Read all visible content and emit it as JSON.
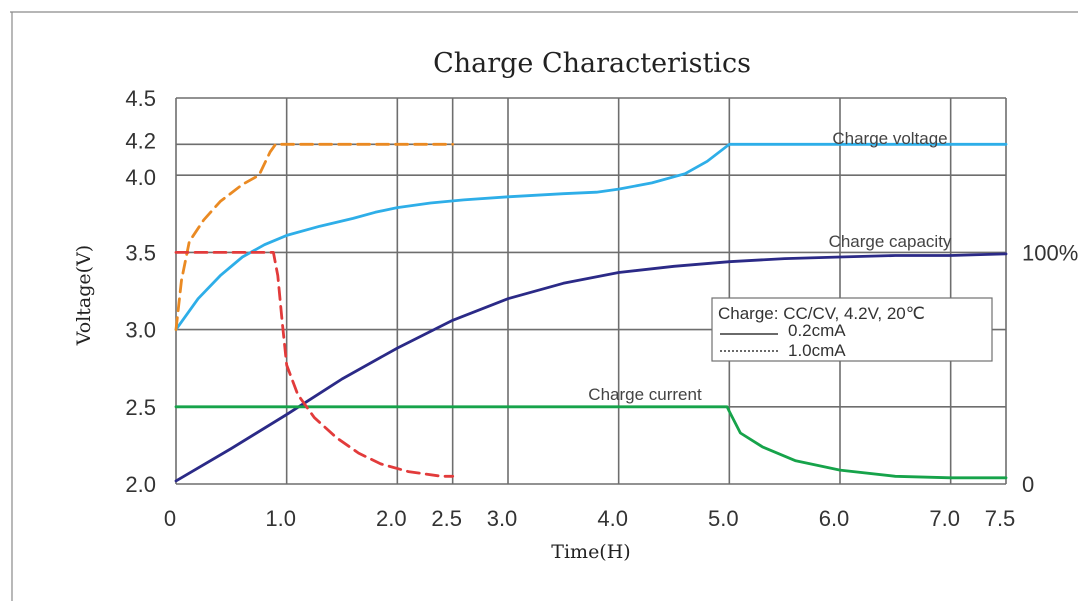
{
  "chart_data": {
    "type": "line",
    "title": "Charge Characteristics",
    "xlabel": "Time(H)",
    "ylabel": "Voltage(V)",
    "xlim": [
      0,
      7.5
    ],
    "ylim": [
      2.0,
      4.5
    ],
    "x_ticks": [
      {
        "v": 0,
        "label": "0"
      },
      {
        "v": 1.0,
        "label": "1.0"
      },
      {
        "v": 2.0,
        "label": "2.0"
      },
      {
        "v": 2.5,
        "label": "2.5"
      },
      {
        "v": 3.0,
        "label": "3.0"
      },
      {
        "v": 4.0,
        "label": "4.0"
      },
      {
        "v": 5.0,
        "label": "5.0"
      },
      {
        "v": 6.0,
        "label": "6.0"
      },
      {
        "v": 7.0,
        "label": "7.0"
      },
      {
        "v": 7.5,
        "label": "7.5"
      }
    ],
    "x_grid": [
      0,
      1.0,
      2.0,
      2.5,
      3.0,
      4.0,
      5.0,
      6.0,
      7.0,
      7.5
    ],
    "y_ticks": [
      {
        "v": 2.0,
        "label": "2.0"
      },
      {
        "v": 2.5,
        "label": "2.5"
      },
      {
        "v": 3.0,
        "label": "3.0"
      },
      {
        "v": 3.5,
        "label": "3.5"
      },
      {
        "v": 4.0,
        "label": "4.0"
      },
      {
        "v": 4.2,
        "label": "4.2"
      },
      {
        "v": 4.5,
        "label": "4.5"
      }
    ],
    "y_grid": [
      2.0,
      2.5,
      3.0,
      3.5,
      4.0,
      4.2,
      4.5
    ],
    "right_axis_labels": [
      {
        "v": 3.5,
        "label": "100%"
      },
      {
        "v": 2.0,
        "label": "0"
      }
    ],
    "grid": true,
    "legend": {
      "placement": "right",
      "title": "Charge: CC/CV, 4.2V, 20℃",
      "entries": [
        {
          "label": "0.2cmA",
          "style": "solid"
        },
        {
          "label": "1.0cmA",
          "style": "dotted"
        }
      ]
    },
    "series": [
      {
        "key": "voltage_02",
        "color": "#2eaee8",
        "dashed": false,
        "x": [
          0,
          0.2,
          0.4,
          0.6,
          0.8,
          1.0,
          1.3,
          1.6,
          1.8,
          2.0,
          2.3,
          2.6,
          3.0,
          3.5,
          3.8,
          4.0,
          4.3,
          4.6,
          4.8,
          5.0,
          7.5
        ],
        "values": [
          3.0,
          3.2,
          3.35,
          3.47,
          3.55,
          3.61,
          3.67,
          3.72,
          3.76,
          3.79,
          3.82,
          3.84,
          3.86,
          3.88,
          3.89,
          3.91,
          3.95,
          4.01,
          4.09,
          4.2,
          4.2
        ]
      },
      {
        "key": "capacity_02",
        "color": "#2b2a87",
        "dashed": false,
        "x": [
          0,
          0.5,
          1.0,
          1.5,
          2.0,
          2.5,
          3.0,
          3.5,
          4.0,
          4.5,
          5.0,
          5.5,
          6.0,
          6.5,
          7.0,
          7.5
        ],
        "values": [
          2.02,
          2.23,
          2.45,
          2.68,
          2.88,
          3.06,
          3.2,
          3.3,
          3.37,
          3.41,
          3.44,
          3.46,
          3.47,
          3.48,
          3.48,
          3.49
        ]
      },
      {
        "key": "current_02",
        "color": "#16a34a",
        "dashed": false,
        "x": [
          0,
          4.98,
          5.0,
          5.1,
          5.3,
          5.6,
          6.0,
          6.5,
          7.0,
          7.5
        ],
        "values": [
          2.5,
          2.5,
          2.47,
          2.33,
          2.24,
          2.15,
          2.09,
          2.05,
          2.04,
          2.04
        ]
      },
      {
        "key": "voltage_10",
        "color": "#ea8a23",
        "dashed": true,
        "x": [
          0,
          0.05,
          0.12,
          0.25,
          0.4,
          0.6,
          0.75,
          0.85,
          0.9,
          2.5
        ],
        "values": [
          3.0,
          3.32,
          3.57,
          3.71,
          3.83,
          3.94,
          4.0,
          4.15,
          4.2,
          4.2
        ]
      },
      {
        "key": "current_10",
        "color": "#e23b3b",
        "dashed": true,
        "x": [
          0,
          0.88,
          0.92,
          0.96,
          1.0,
          1.1,
          1.25,
          1.45,
          1.65,
          1.85,
          2.1,
          2.4,
          2.5
        ],
        "values": [
          3.5,
          3.5,
          3.35,
          3.05,
          2.77,
          2.58,
          2.43,
          2.3,
          2.2,
          2.13,
          2.08,
          2.05,
          2.05
        ]
      }
    ],
    "annotations": [
      {
        "key": "voltage",
        "text": "Charge voltage"
      },
      {
        "key": "capacity",
        "text": "Charge capacity"
      },
      {
        "key": "current",
        "text": "Charge current"
      }
    ]
  }
}
